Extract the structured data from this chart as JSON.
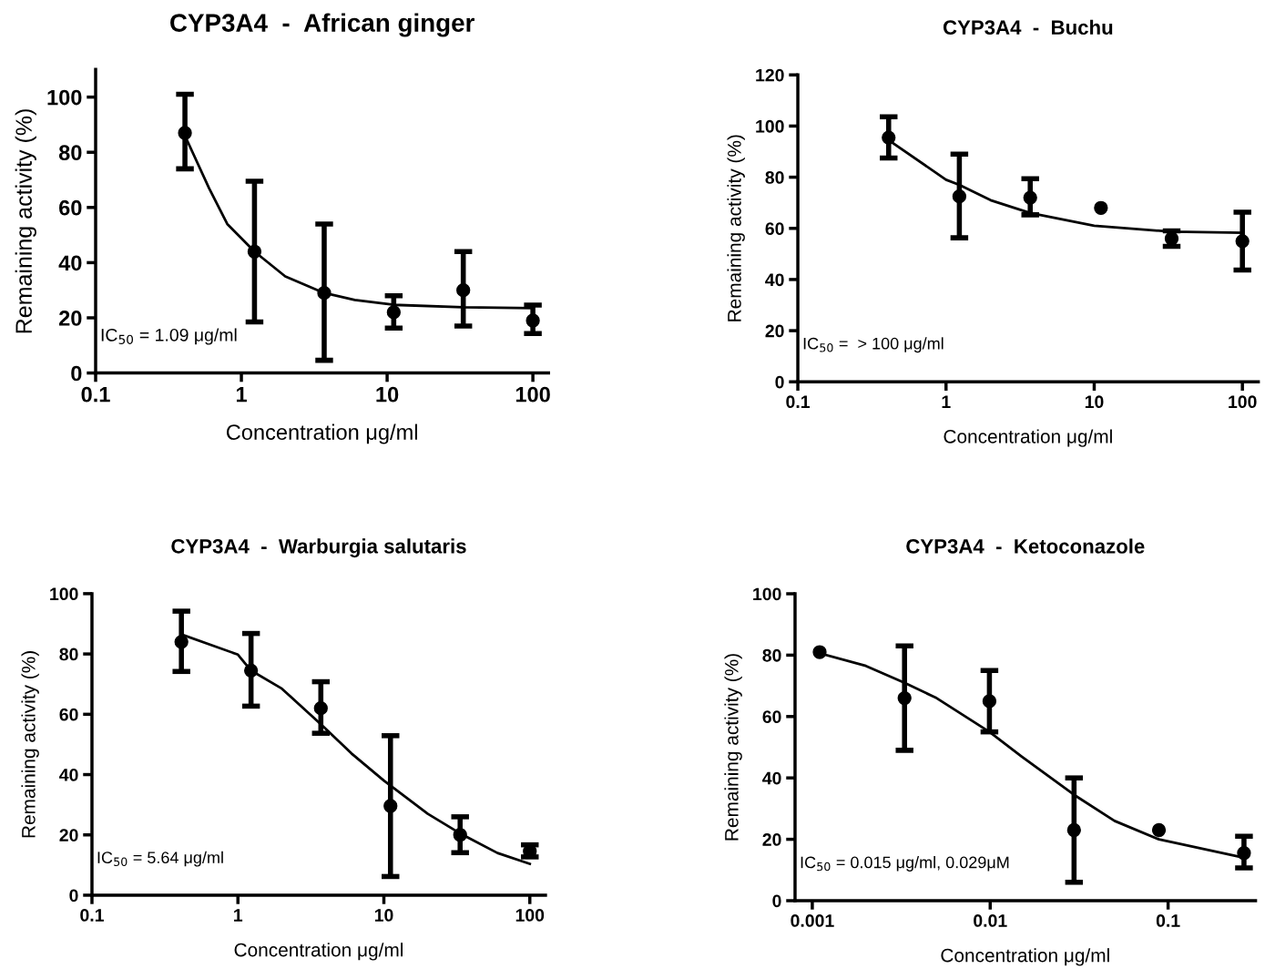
{
  "chart_data": [
    {
      "type": "scatter",
      "title": "CYP3A4  -  African ginger",
      "xlabel": "Concentration μg/ml",
      "ylabel": "Remaining activity (%)",
      "log": "x",
      "xlim": [
        0.1,
        128
      ],
      "xticks": [
        0.1,
        1,
        10,
        100
      ],
      "ylim": [
        0,
        110
      ],
      "yticks": [
        0,
        20,
        40,
        60,
        80,
        100
      ],
      "annotations": [
        "IC$_{50}$ = 1.09 μg/ml"
      ],
      "series": [
        {
          "color": "#000000",
          "marker": "circle",
          "x": [
            0.41,
            1.23,
            3.7,
            11.1,
            33.3,
            100
          ],
          "values": [
            87,
            44,
            29,
            22,
            30,
            19
          ],
          "errors": [
            [
              74,
              101
            ],
            [
              18.5,
              69.5
            ],
            [
              4.6,
              54
            ],
            [
              16.3,
              28
            ],
            [
              17,
              44
            ],
            [
              14.3,
              24.6
            ]
          ]
        },
        {
          "type": "line",
          "color": "#000000",
          "marker": "none",
          "line_style": "solid",
          "x": [
            0.41,
            0.6,
            0.8,
            1.23,
            2,
            3.7,
            6,
            11.1,
            33.3,
            100
          ],
          "values": [
            86,
            67,
            54,
            44,
            35,
            29,
            26.5,
            24.7,
            23.8,
            23.5
          ]
        }
      ]
    },
    {
      "type": "scatter",
      "title": "CYP3A4  -  Buchu",
      "xlabel": "Concentration μg/ml",
      "ylabel": "Remaining activity (%)",
      "log": "x",
      "xlim": [
        0.1,
        128
      ],
      "xticks": [
        0.1,
        1,
        10,
        100
      ],
      "ylim": [
        0,
        120
      ],
      "yticks": [
        0,
        20,
        40,
        60,
        80,
        100,
        120
      ],
      "annotations": [
        "IC$_{50}$ =  > 100 μg/ml"
      ],
      "series": [
        {
          "color": "#000000",
          "marker": "circle",
          "x": [
            0.41,
            1.23,
            3.7,
            11.1,
            33.3,
            100
          ],
          "values": [
            95.5,
            72.5,
            72,
            68,
            56,
            55
          ],
          "errors": [
            [
              87.5,
              103.6
            ],
            [
              56.3,
              89
            ],
            [
              65.3,
              79.4
            ],
            null,
            [
              53,
              59
            ],
            [
              43.7,
              66.3
            ]
          ]
        },
        {
          "type": "line",
          "color": "#000000",
          "marker": "none",
          "line_style": "solid",
          "x": [
            0.41,
            1,
            1.23,
            2,
            3.7,
            10,
            33.3,
            100
          ],
          "values": [
            94.5,
            79,
            77,
            71,
            66,
            61,
            58.7,
            58.3
          ]
        }
      ]
    },
    {
      "type": "scatter",
      "title": "CYP3A4  -  Warburgia salutaris",
      "xlabel": "Concentration μg/ml",
      "ylabel": "Remaining activity (%)",
      "log": "x",
      "xlim": [
        0.1,
        128
      ],
      "xticks": [
        0.1,
        1,
        10,
        100
      ],
      "ylim": [
        0,
        100
      ],
      "yticks": [
        0,
        20,
        40,
        60,
        80,
        100
      ],
      "annotations": [
        "IC$_{50}$ = 5.64 μg/ml"
      ],
      "series": [
        {
          "color": "#000000",
          "marker": "circle",
          "x": [
            0.41,
            1.23,
            3.7,
            11.1,
            33.3,
            100
          ],
          "values": [
            84,
            74.5,
            62,
            29.6,
            20,
            14.6
          ],
          "errors": [
            [
              74.2,
              94.2
            ],
            [
              62.7,
              86.8
            ],
            [
              53.7,
              70.8
            ],
            [
              6.2,
              52.9
            ],
            [
              14.1,
              26
            ],
            [
              12.7,
              16.7
            ]
          ]
        },
        {
          "type": "line",
          "color": "#000000",
          "marker": "none",
          "line_style": "solid",
          "x": [
            0.41,
            1,
            1.23,
            2,
            3.7,
            6,
            10,
            20,
            33.3,
            60,
            100
          ],
          "values": [
            86.5,
            79.8,
            74.5,
            68.5,
            56.7,
            47,
            38,
            27,
            20.5,
            14,
            10.4
          ]
        }
      ]
    },
    {
      "type": "scatter",
      "title": "CYP3A4  -  Ketoconazole",
      "xlabel": "Concentration μg/ml",
      "ylabel": "Remaining activity (%)",
      "log": "x",
      "xlim": [
        0.0008,
        0.31
      ],
      "xticks": [
        0.001,
        0.01,
        0.1
      ],
      "ylim": [
        0,
        100
      ],
      "yticks": [
        0,
        20,
        40,
        60,
        80,
        100
      ],
      "annotations": [
        "IC$_{50}$ = 0.015 μg/ml, 0.029μM"
      ],
      "series": [
        {
          "color": "#000000",
          "marker": "circle",
          "x": [
            0.0011,
            0.0033,
            0.0099,
            0.0296,
            0.0888,
            0.267
          ],
          "values": [
            81,
            66,
            65,
            23,
            23,
            15.5
          ],
          "errors": [
            null,
            [
              49,
              83
            ],
            [
              55,
              75
            ],
            [
              6,
              40
            ],
            null,
            [
              10.7,
              21
            ]
          ]
        },
        {
          "type": "line",
          "color": "#000000",
          "marker": "none",
          "line_style": "solid",
          "x": [
            0.0011,
            0.002,
            0.0033,
            0.005,
            0.0099,
            0.015,
            0.0296,
            0.05,
            0.0888,
            0.267
          ],
          "values": [
            80.6,
            76.5,
            71,
            66,
            55,
            47,
            34.5,
            26,
            20,
            14
          ]
        }
      ]
    }
  ]
}
